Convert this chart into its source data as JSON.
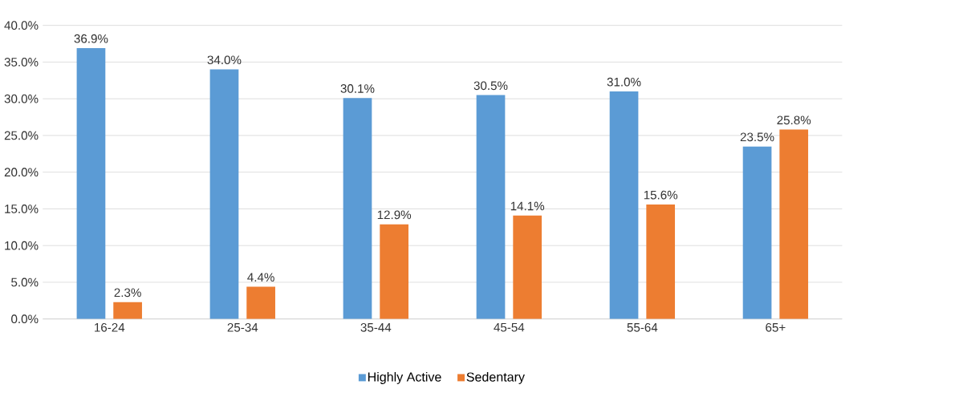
{
  "chart_data": {
    "type": "bar",
    "categories": [
      "16-24",
      "25-34",
      "35-44",
      "45-54",
      "55-64",
      "65+"
    ],
    "series": [
      {
        "name": "Highly Active",
        "color": "#5b9bd5",
        "values": [
          36.9,
          34.0,
          30.1,
          30.5,
          31.0,
          23.5
        ],
        "value_labels": [
          "36.9%",
          "34.0%",
          "30.1%",
          "30.5%",
          "31.0%",
          "23.5%"
        ]
      },
      {
        "name": "Sedentary",
        "color": "#ed7d31",
        "values": [
          2.3,
          4.4,
          12.9,
          14.1,
          15.6,
          25.8
        ],
        "value_labels": [
          "2.3%",
          "4.4%",
          "12.9%",
          "14.1%",
          "15.6%",
          "25.8%"
        ]
      }
    ],
    "ylim": [
      0,
      40
    ],
    "yticks": [
      {
        "value": 0,
        "label": "0.0%"
      },
      {
        "value": 5,
        "label": "5.0%"
      },
      {
        "value": 10,
        "label": "10.0%"
      },
      {
        "value": 15,
        "label": "15.0%"
      },
      {
        "value": 20,
        "label": "20.0%"
      },
      {
        "value": 25,
        "label": "25.0%"
      },
      {
        "value": 30,
        "label": "30.0%"
      },
      {
        "value": 35,
        "label": "35.0%"
      },
      {
        "value": 40,
        "label": "40.0%"
      }
    ],
    "grid": "y",
    "legend": "bottom"
  }
}
